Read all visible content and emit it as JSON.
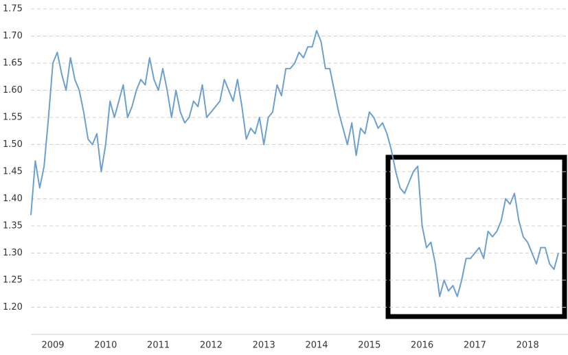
{
  "chart_data": {
    "type": "line",
    "categories": [
      null,
      null,
      null,
      null,
      null,
      "2009",
      null,
      null,
      null,
      null,
      null,
      null,
      null,
      null,
      null,
      null,
      null,
      "2010",
      null,
      null,
      null,
      null,
      null,
      null,
      null,
      null,
      null,
      null,
      null,
      "2011",
      null,
      null,
      null,
      null,
      null,
      null,
      null,
      null,
      null,
      null,
      null,
      "2012",
      null,
      null,
      null,
      null,
      null,
      null,
      null,
      null,
      null,
      null,
      null,
      "2013",
      null,
      null,
      null,
      null,
      null,
      null,
      null,
      null,
      null,
      null,
      null,
      "2014",
      null,
      null,
      null,
      null,
      null,
      null,
      null,
      null,
      null,
      null,
      null,
      "2015",
      null,
      null,
      null,
      null,
      null,
      null,
      null,
      null,
      null,
      null,
      null,
      "2016",
      null,
      null,
      null,
      null,
      null,
      null,
      null,
      null,
      null,
      null,
      null,
      "2017",
      null,
      null,
      null,
      null,
      null,
      null,
      null,
      null,
      null,
      null,
      null,
      "2018",
      null,
      null,
      null,
      null,
      null,
      null,
      null
    ],
    "series": [
      {
        "color": "#6a9fcf",
        "values": [
          1.37,
          1.47,
          1.42,
          1.46,
          1.55,
          1.65,
          1.67,
          1.63,
          1.6,
          1.66,
          1.62,
          1.6,
          1.56,
          1.51,
          1.5,
          1.52,
          1.45,
          1.5,
          1.58,
          1.55,
          1.58,
          1.61,
          1.55,
          1.57,
          1.6,
          1.62,
          1.61,
          1.66,
          1.62,
          1.6,
          1.64,
          1.6,
          1.55,
          1.6,
          1.56,
          1.54,
          1.55,
          1.58,
          1.57,
          1.61,
          1.55,
          1.56,
          1.57,
          1.58,
          1.62,
          1.6,
          1.58,
          1.62,
          1.57,
          1.51,
          1.53,
          1.52,
          1.55,
          1.5,
          1.55,
          1.56,
          1.61,
          1.59,
          1.64,
          1.64,
          1.65,
          1.67,
          1.66,
          1.68,
          1.68,
          1.71,
          1.69,
          1.64,
          1.64,
          1.6,
          1.56,
          1.53,
          1.5,
          1.54,
          1.48,
          1.53,
          1.52,
          1.56,
          1.55,
          1.53,
          1.54,
          1.52,
          1.49,
          1.45,
          1.42,
          1.41,
          1.43,
          1.45,
          1.46,
          1.35,
          1.31,
          1.32,
          1.28,
          1.22,
          1.25,
          1.23,
          1.24,
          1.22,
          1.25,
          1.29,
          1.29,
          1.3,
          1.31,
          1.29,
          1.34,
          1.33,
          1.34,
          1.36,
          1.4,
          1.39,
          1.41,
          1.36,
          1.33,
          1.32,
          1.3,
          1.28,
          1.31,
          1.31,
          1.28,
          1.27,
          1.3
        ]
      }
    ],
    "ylim": [
      1.15,
      1.75
    ],
    "yticks": [
      {
        "value": 1.2,
        "label": "1.20"
      },
      1.25,
      {
        "value": 1.3,
        "label": "1.30"
      },
      1.35,
      {
        "value": 1.4,
        "label": "1.40"
      },
      1.45,
      {
        "value": 1.5,
        "label": "1.50"
      },
      1.55,
      {
        "value": 1.6,
        "label": "1.60"
      },
      1.65,
      {
        "value": 1.7,
        "label": "1.70"
      },
      1.75
    ],
    "grid": true
  }
}
